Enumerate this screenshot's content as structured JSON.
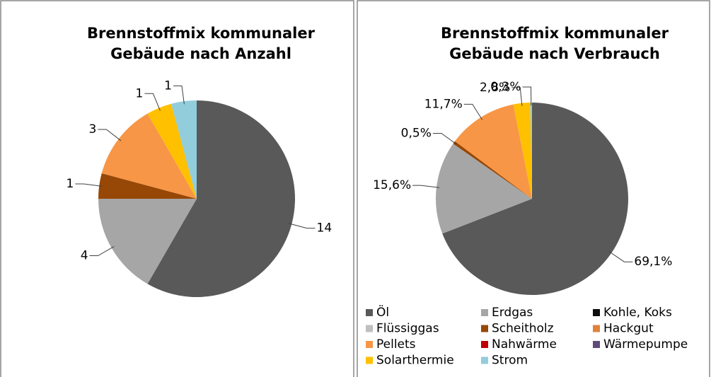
{
  "chart_data": [
    {
      "type": "pie",
      "title": [
        "Brennstoffmix kommunaler",
        "Gebäude nach Anzahl"
      ],
      "categories": [
        "Öl",
        "Erdgas",
        "Scheitholz",
        "Pellets",
        "Solarthermie",
        "Strom"
      ],
      "values": [
        14,
        4,
        1,
        3,
        1,
        1
      ],
      "colors": [
        "#595959",
        "#a6a6a6",
        "#974706",
        "#f79646",
        "#ffc000",
        "#92cddc"
      ]
    },
    {
      "type": "pie",
      "title": [
        "Brennstoffmix kommunaler",
        "Gebäude nach Verbrauch"
      ],
      "categories": [
        "Öl",
        "Erdgas",
        "Kohle, Koks",
        "Flüssiggas",
        "Scheitholz",
        "Hackgut",
        "Pellets",
        "Nahwärme",
        "Wärmepumpe",
        "Solarthermie",
        "Strom"
      ],
      "values": [
        69.1,
        15.6,
        0,
        0,
        0.5,
        0,
        11.7,
        0,
        0,
        2.8,
        0.3
      ],
      "value_labels": [
        "69,1%",
        "15,6%",
        null,
        null,
        "0,5%",
        null,
        "11,7%",
        null,
        null,
        "2,8%",
        "0,3%"
      ],
      "colors": [
        "#595959",
        "#a6a6a6",
        "#0d0d0d",
        "#bfbfbf",
        "#974706",
        "#e0823d",
        "#f79646",
        "#c00000",
        "#604a7b",
        "#ffc000",
        "#92cddc"
      ],
      "legend": "bottom"
    }
  ]
}
